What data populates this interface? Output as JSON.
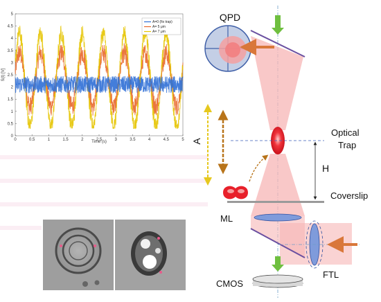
{
  "labels": {
    "qpd": "QPD",
    "optical_trap_line1": "Optical",
    "optical_trap_line2": "Trap",
    "h": "H",
    "a": "A",
    "coverslip": "Coverslip",
    "ml": "ML",
    "ftl": "FTL",
    "cmos": "CMOS"
  },
  "colors": {
    "beam": "#f7b5b5",
    "beam_dark": "#f28c8c",
    "bead": "#e8202a",
    "arrow_orange": "#d9773a",
    "arrow_dashed_brown": "#b8741a",
    "arrow_dashed_yellow": "#e6c81e",
    "arrow_green": "#6fbf3f",
    "lens_blue": "#7f9bdb",
    "mirror": "#6a4fa0",
    "detector_gray": "#d8d8d8"
  },
  "chart_data": {
    "type": "line",
    "title": "",
    "xlabel": "Time (s)",
    "ylabel": "S(t) [V]",
    "xlim": [
      0,
      5
    ],
    "ylim": [
      0,
      5
    ],
    "xticks": [
      "0",
      "0.5",
      "1",
      "1.5",
      "2",
      "2.5",
      "3",
      "3.5",
      "4",
      "4.5",
      "5"
    ],
    "yticks": [
      "0",
      "0.5",
      "1",
      "1.5",
      "2",
      "2.5",
      "3",
      "3.5",
      "4",
      "4.5",
      "5"
    ],
    "legend_position": "top-right",
    "series": [
      {
        "name": "A=0 (fix trap)",
        "color": "#2f6fd6",
        "center": 2.1,
        "amplitude": 0.0,
        "noise": 0.35
      },
      {
        "name": "A= 5 μm",
        "color": "#e8682a",
        "center": 2.3,
        "amplitude": 1.1,
        "noise": 0.4,
        "frequency_hz": 1.6
      },
      {
        "name": "A= 7 μm",
        "color": "#e6c400",
        "center": 2.3,
        "amplitude": 1.9,
        "noise": 0.35,
        "frequency_hz": 1.6
      }
    ]
  }
}
